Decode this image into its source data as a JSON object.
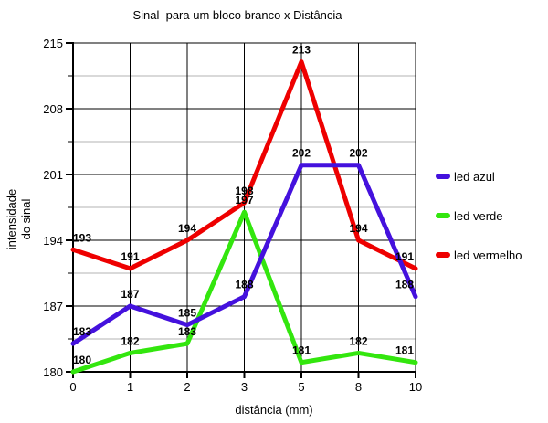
{
  "chart_data": {
    "type": "line",
    "title": "Sinal  para um bloco branco x Distância",
    "xlabel": "distância (mm)",
    "ylabel_lines": [
      "intensidade",
      "do sinal"
    ],
    "categories": [
      "0",
      "1",
      "2",
      "3",
      "5",
      "8",
      "10"
    ],
    "series": [
      {
        "name": "led azul",
        "color": "#4411dd",
        "values": [
          183,
          187,
          185,
          188,
          202,
          202,
          188
        ]
      },
      {
        "name": "led verde",
        "color": "#33e60e",
        "values": [
          180,
          182,
          183,
          197,
          181,
          182,
          181
        ]
      },
      {
        "name": "led vermelho",
        "color": "#ee0000",
        "values": [
          193,
          191,
          194,
          198,
          213,
          194,
          191
        ]
      }
    ],
    "z_order": [
      "led verde",
      "led vermelho",
      "led azul"
    ],
    "y_ticks": [
      180,
      187,
      194,
      201,
      208,
      215
    ],
    "y_minor_ticks": [
      183.5,
      190.5,
      197.5,
      204.5,
      211.5
    ],
    "ylim": [
      180,
      215
    ],
    "grid": {
      "major_color": "#000000",
      "minor_color": "#b3b3b3"
    },
    "axis_color": "#000000",
    "data_labels": true,
    "legend_position": "right"
  }
}
